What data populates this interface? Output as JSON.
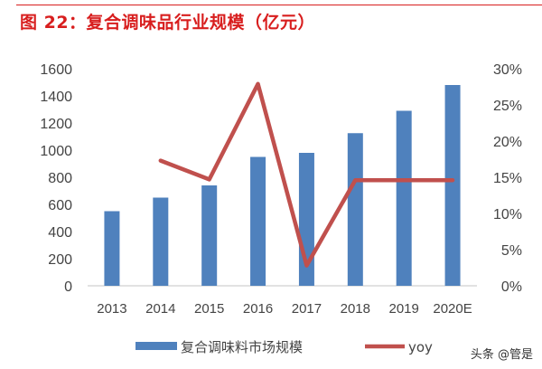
{
  "title": "图 22：复合调味品行业规模（亿元）",
  "watermark": "头条 @管是",
  "chart_data": {
    "type": "bar+line",
    "categories": [
      "2013",
      "2014",
      "2015",
      "2016",
      "2017",
      "2018",
      "2019",
      "2020E"
    ],
    "series": [
      {
        "name": "复合调味料市场规模",
        "type": "bar",
        "axis": "left",
        "color": "#4f81bd",
        "values": [
          550,
          650,
          740,
          950,
          980,
          1125,
          1290,
          1480
        ]
      },
      {
        "name": "yoy",
        "type": "line",
        "axis": "right",
        "color": "#c0504d",
        "values": [
          null,
          17.3,
          14.7,
          27.9,
          2.8,
          14.6,
          14.6,
          14.6
        ]
      }
    ],
    "y_left": {
      "ylim": [
        0,
        1600
      ],
      "ticks": [
        "0",
        "200",
        "400",
        "600",
        "800",
        "1000",
        "1200",
        "1400",
        "1600"
      ]
    },
    "y_right": {
      "ylim": [
        0,
        30
      ],
      "ticks": [
        "0%",
        "5%",
        "10%",
        "15%",
        "20%",
        "25%",
        "30%"
      ]
    },
    "grid": false,
    "legend": "bottom"
  }
}
